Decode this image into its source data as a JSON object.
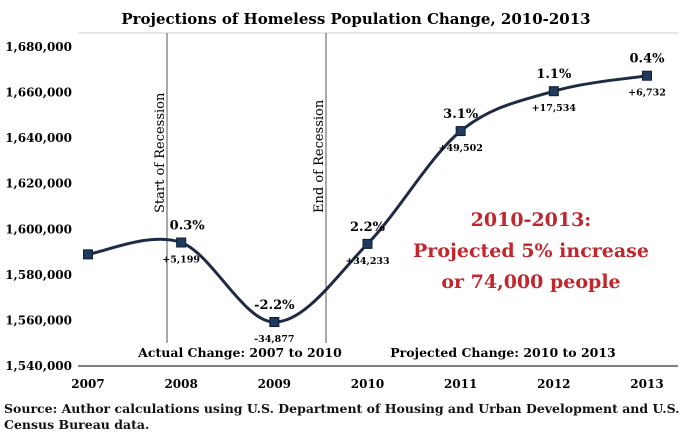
{
  "chart_data": {
    "type": "line",
    "title": "Projections of Homeless Population Change, 2010-2013",
    "xlabel": "",
    "ylabel": "",
    "categories": [
      "2007",
      "2008",
      "2009",
      "2010",
      "2011",
      "2012",
      "2013"
    ],
    "series": [
      {
        "values": [
          1589000,
          1594200,
          1559300,
          1593600,
          1643100,
          1660600,
          1667400
        ]
      }
    ],
    "point_labels": [
      "",
      "0.3%",
      "-2.2%",
      "2.2%",
      "3.1%",
      "1.1%",
      "0.4%"
    ],
    "change_labels": [
      "",
      "+5,199",
      "-34,877",
      "+34,233",
      "+49,502",
      "+17,534",
      "+6,732"
    ],
    "ylim": [
      1540000,
      1680000
    ],
    "yticks": [
      "1,540,000",
      "1,560,000",
      "1,580,000",
      "1,600,000",
      "1,620,000",
      "1,640,000",
      "1,660,000",
      "1,680,000"
    ],
    "grid": false,
    "legend": "none",
    "annotations": {
      "start_recession": "Start of Recession",
      "end_recession": "End of Recession",
      "actual_change": "Actual Change: 2007 to 2010",
      "projected_change": "Projected Change: 2010 to 2013",
      "callout": [
        "2010-2013:",
        "Projected 5% increase",
        "or 74,000 people"
      ]
    },
    "colors": {
      "line": "#1f2a44",
      "marker": "#1f3a5f",
      "callout": "#c0272d",
      "divider": "#555555"
    }
  },
  "source_note": "Source: Author calculations using U.S. Department of Housing and Urban Development and U.S. Census Bureau data."
}
